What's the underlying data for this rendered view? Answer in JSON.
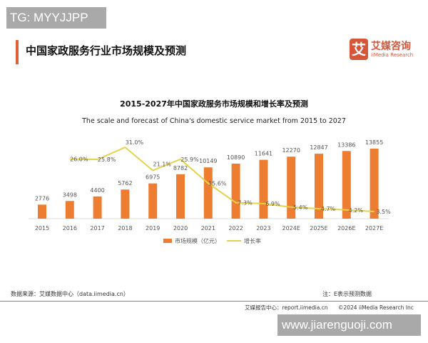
{
  "watermark_top": "TG: MYYJJPP",
  "watermark_bottom": "www.jiarenguoji.com",
  "header": {
    "title": "中国家政服务行业市场规模及预测",
    "logo_mark": "艾",
    "logo_cn": "艾媒咨询",
    "logo_en": "iiMedia Research"
  },
  "footer": {
    "source": "数据来源：艾媒数据中心（data.iimedia.cn）",
    "note": "注：E表示预测数据",
    "report_center": "艾媒报告中心：report.iimedia.cn",
    "copyright": "©2024  iiMedia Research  Inc"
  },
  "colors": {
    "bar": "#ed7d31",
    "line": "#e6d24a",
    "accent": "#d6563a"
  },
  "chart_data": {
    "type": "bar",
    "title": "2015-2027年中国家政服务市场规模和增长率及预测",
    "subtitle": "The scale and forecast of China's domestic service market from 2015 to 2027",
    "categories": [
      "2015",
      "2016",
      "2017",
      "2018",
      "2019",
      "2020",
      "2021",
      "2022",
      "2023",
      "2024E",
      "2025E",
      "2026E",
      "2027E"
    ],
    "series": [
      {
        "name": "市场规模（亿元）",
        "type": "bar",
        "values": [
          2776,
          3498,
          4400,
          5762,
          6975,
          8782,
          10149,
          10890,
          11641,
          12270,
          12847,
          13386,
          13855
        ]
      },
      {
        "name": "增长率",
        "type": "line",
        "unit": "%",
        "values": [
          null,
          26.0,
          25.8,
          31.0,
          21.1,
          25.9,
          15.6,
          7.3,
          6.9,
          5.4,
          4.7,
          4.2,
          3.5
        ],
        "labels": [
          "",
          "26.0%",
          "25.8%",
          "31.0%",
          "21.1%",
          "25.9%",
          "15.6%",
          "7.3%",
          "6.9%",
          "5.4%",
          "4.7%",
          "4.2%",
          "3.5%"
        ]
      }
    ],
    "legend": "bottom",
    "grid": false
  }
}
